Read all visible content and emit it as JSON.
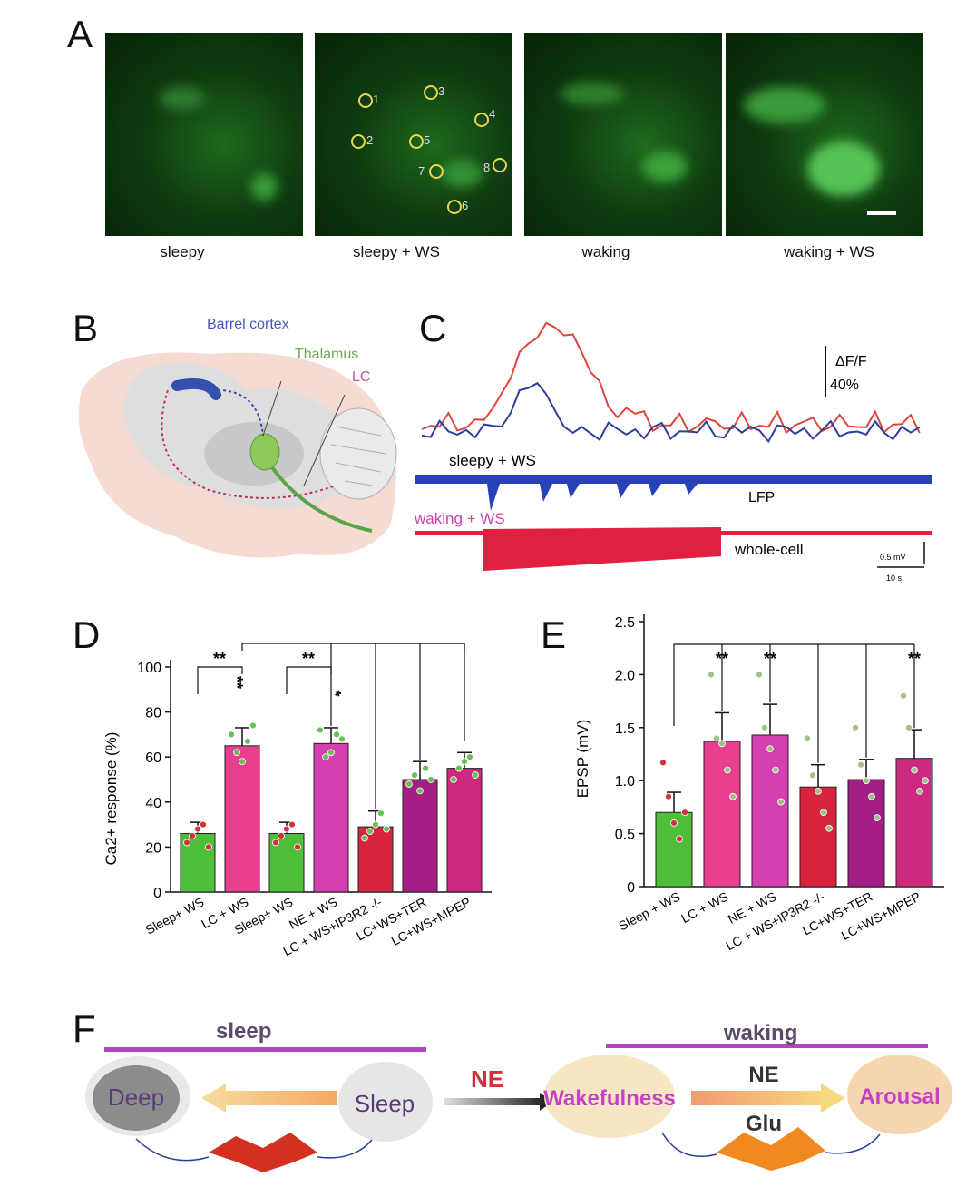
{
  "panels": {
    "a": "A",
    "b": "B",
    "c": "C",
    "d": "D",
    "e": "E",
    "f": "F"
  },
  "panel_a": {
    "images": [
      {
        "label": "sleepy"
      },
      {
        "label": "sleepy + WS"
      },
      {
        "label": "waking"
      },
      {
        "label": "waking + WS"
      }
    ],
    "roi_numbers": [
      "1",
      "2",
      "3",
      "4",
      "5",
      "6",
      "7",
      "8"
    ]
  },
  "panel_b": {
    "labels": {
      "barrel": "Barrel cortex",
      "thalamus": "Thalamus",
      "lc": "LC"
    },
    "colors": {
      "barrel": "#4a56c0",
      "thalamus": "#6aa84f",
      "lc": "#c45aa0"
    }
  },
  "panel_c": {
    "scale_df": "ΔF/F",
    "scale_df_value": "40%",
    "label_sleepy": "sleepy + WS",
    "label_waking": "waking + WS",
    "label_lfp": "LFP",
    "label_wholecell": "whole-cell",
    "scale_mv": "0.5 mV",
    "scale_s": "10 s",
    "colors": {
      "red_trace": "#e0443a",
      "blue_trace": "#2a3f9c",
      "lfp": "#2742b8",
      "wholecell": "#e02040",
      "waking_label": "#d040b0"
    }
  },
  "chart_data": [
    {
      "type": "bar",
      "panel": "D",
      "ylabel": "Ca2+ response (%)",
      "ylim": [
        0,
        100
      ],
      "yticks": [
        "0",
        "20",
        "40",
        "60",
        "80",
        "100"
      ],
      "categories": [
        "Sleep+ WS",
        "LC + WS",
        "Sleep+ WS",
        "NE + WS",
        "LC + WS+IP3R2 -/-",
        "LC+WS+TER",
        "LC+WS+MPEP"
      ],
      "values": [
        26,
        65,
        26,
        66,
        29,
        50,
        55
      ],
      "errors": [
        5,
        8,
        5,
        7,
        7,
        8,
        7
      ],
      "colors": [
        "#4fbf3a",
        "#e8408f",
        "#4fbf3a",
        "#d63fb0",
        "#d8233f",
        "#a31f86",
        "#cc2a7e"
      ],
      "points": [
        [
          22,
          25,
          28,
          30,
          20
        ],
        [
          70,
          62,
          58,
          67,
          74
        ],
        [
          22,
          25,
          28,
          30,
          20
        ],
        [
          72,
          60,
          62,
          70,
          68
        ],
        [
          24,
          27,
          30,
          35,
          28
        ],
        [
          48,
          52,
          45,
          55,
          50
        ],
        [
          50,
          55,
          58,
          60,
          52
        ]
      ],
      "point_colors": [
        "#d0333f",
        "#6bbf5a",
        "#d0333f",
        "#6bbf5a",
        "#6bbf5a",
        "#6bbf5a",
        "#6bbf5a"
      ],
      "significance": [
        "**",
        "**",
        "*",
        "**"
      ]
    },
    {
      "type": "bar",
      "panel": "E",
      "ylabel": "EPSP (mV)",
      "ylim": [
        0,
        2.5
      ],
      "yticks": [
        "0",
        "0.5",
        "1.0",
        "1.5",
        "2.0",
        "2.5"
      ],
      "categories": [
        "Sleep + WS",
        "LC + WS",
        "NE + WS",
        "LC + WS+IP3R2 -/-",
        "LC+WS+TER",
        "LC+WS+MPEP"
      ],
      "values": [
        0.7,
        1.37,
        1.43,
        0.94,
        1.01,
        1.21
      ],
      "errors": [
        0.19,
        0.27,
        0.29,
        0.21,
        0.19,
        0.27
      ],
      "colors": [
        "#4fbf3a",
        "#e8408f",
        "#d63fb0",
        "#d8233f",
        "#a31f86",
        "#cc2a7e"
      ],
      "points": [
        [
          1.17,
          0.85,
          0.6,
          0.45,
          0.7
        ],
        [
          2.0,
          1.4,
          1.35,
          1.1,
          0.85
        ],
        [
          2.0,
          1.5,
          1.3,
          1.1,
          0.8
        ],
        [
          1.4,
          1.05,
          0.9,
          0.7,
          0.55
        ],
        [
          1.5,
          1.15,
          1.0,
          0.85,
          0.65
        ],
        [
          1.8,
          1.5,
          1.1,
          0.9,
          1.0
        ]
      ],
      "point_colors": [
        "#d0333f",
        "#a0c090",
        "#a0c090",
        "#a0c090",
        "#a0c090",
        "#a0c090"
      ],
      "significance": [
        "**",
        "**",
        "**"
      ]
    }
  ],
  "panel_f": {
    "sleep_header": "sleep",
    "waking_header": "waking",
    "deep": "Deep",
    "sleep": "Sleep",
    "ne_center": "NE",
    "wakefulness": "Wakefulness",
    "arousal": "Arousal",
    "ne_top": "NE",
    "glu": "Glu",
    "colors": {
      "magenta": "#c542c8",
      "bar": "#b046c0",
      "ne_red": "#d0303a"
    }
  }
}
